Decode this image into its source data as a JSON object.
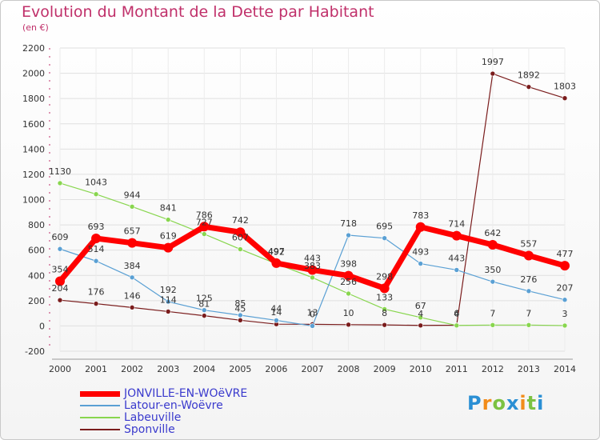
{
  "title": "Evolution du Montant de la Dette par Habitant",
  "unit": "(en €)",
  "logo": "Proxiti",
  "chart_data": {
    "type": "line",
    "x": [
      2000,
      2001,
      2002,
      2003,
      2004,
      2005,
      2006,
      2007,
      2008,
      2009,
      2010,
      2011,
      2012,
      2013,
      2014
    ],
    "ylim": [
      -200,
      2200
    ],
    "yticks": [
      -200,
      0,
      200,
      400,
      600,
      800,
      1000,
      1200,
      1400,
      1600,
      1800,
      2000,
      2200
    ],
    "grid": true,
    "legend": "bottom-left",
    "series": [
      {
        "name": "JONVILLE-EN-WOëVRE",
        "color": "#ff0000",
        "width": 7,
        "values": [
          354,
          693,
          657,
          619,
          786,
          742,
          497,
          443,
          398,
          298,
          783,
          714,
          642,
          557,
          477
        ]
      },
      {
        "name": "Latour-en-Woëvre",
        "color": "#5aa0d4",
        "width": 1.2,
        "values": [
          609,
          514,
          384,
          192,
          125,
          85,
          44,
          0,
          718,
          695,
          493,
          443,
          350,
          276,
          207
        ]
      },
      {
        "name": "Labeuville",
        "color": "#88d64e",
        "width": 1.2,
        "values": [
          1130,
          1043,
          944,
          841,
          727,
          607,
          492,
          383,
          256,
          133,
          67,
          4,
          7,
          7,
          3
        ]
      },
      {
        "name": "Sponville",
        "color": "#7a1c1c",
        "width": 1.2,
        "values": [
          204,
          176,
          146,
          114,
          81,
          45,
          14,
          13,
          10,
          8,
          4,
          6,
          1997,
          1892,
          1803
        ]
      }
    ]
  }
}
